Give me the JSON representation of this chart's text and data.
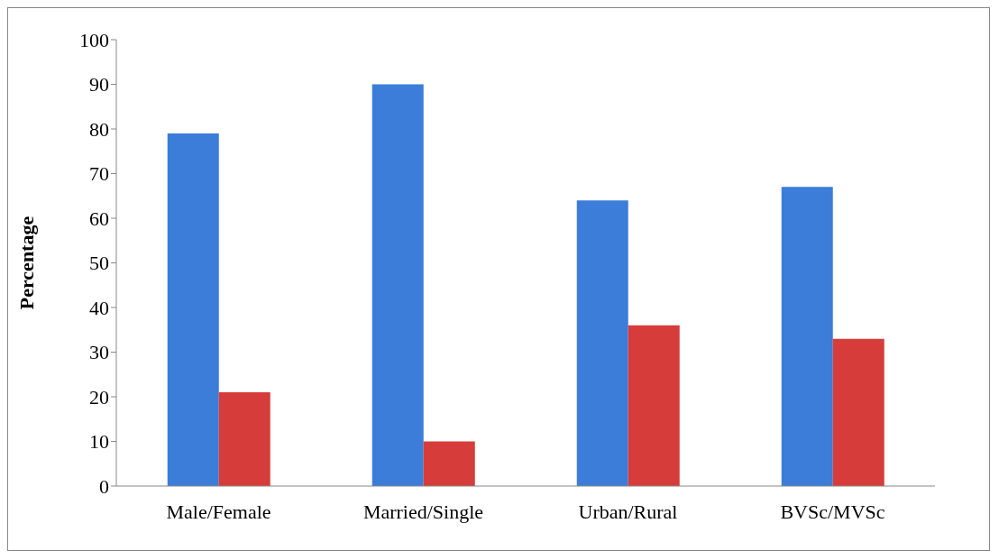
{
  "chart_data": {
    "type": "bar",
    "ylabel": "Percentage",
    "categories": [
      "Male/Female",
      "Married/Single",
      "Urban/Rural",
      "BVSc/MVSc"
    ],
    "series": [
      {
        "color": "#3b7dd8",
        "values": [
          79,
          90,
          64,
          67
        ]
      },
      {
        "color": "#d63c3a",
        "values": [
          21,
          10,
          36,
          33
        ]
      }
    ],
    "ylim": [
      0,
      100
    ],
    "yticks": [
      0,
      10,
      20,
      30,
      40,
      50,
      60,
      70,
      80,
      90,
      100
    ],
    "grid": false,
    "legend": false
  }
}
